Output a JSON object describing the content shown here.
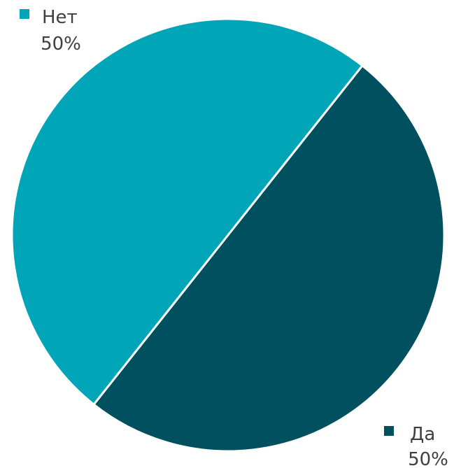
{
  "chart_data": {
    "type": "pie",
    "categories": [
      "Да",
      "Нет"
    ],
    "values": [
      50,
      50
    ],
    "value_labels": [
      "50%",
      "50%"
    ],
    "colors": [
      "#00505f",
      "#00a5b8"
    ],
    "legend": "none",
    "title": ""
  }
}
